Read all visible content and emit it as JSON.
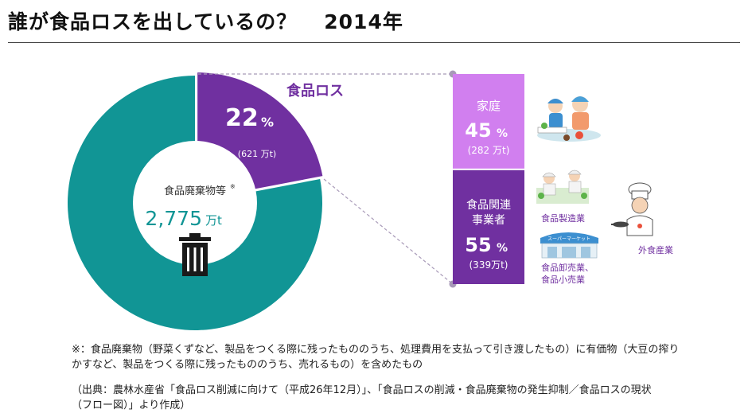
{
  "page": {
    "title": "誰が食品ロスを出しているの？",
    "year": "2014年"
  },
  "chart_data": [
    {
      "type": "pie",
      "title": "",
      "center_label": "食品廃棄物等",
      "center_label_mark": "※",
      "total": "2,775",
      "total_unit": "万t",
      "slices": [
        {
          "name": "食品ロス",
          "percent": 22,
          "percent_unit": "%",
          "amount": "(621 万t)",
          "color": "#7030a0"
        },
        {
          "name": "",
          "percent": 78,
          "color": "#119595"
        }
      ]
    },
    {
      "type": "bar",
      "title": "食品ロス",
      "stacked": true,
      "segments": [
        {
          "name": "家庭",
          "percent": 45,
          "percent_unit": "%",
          "amount": "(282 万t)",
          "color": "#d17fef"
        },
        {
          "name": "食品関連事業者",
          "name_lines": [
            "食品関連",
            "事業者"
          ],
          "percent": 55,
          "percent_unit": "%",
          "amount": "(339万t)",
          "color": "#7030a0"
        }
      ]
    }
  ],
  "business_types": {
    "manufacturing": "食品製造業",
    "wholesale_retail_1": "食品卸売業、",
    "wholesale_retail_2": "食品小売業",
    "restaurant": "外食産業",
    "store_sign": "スーパーマーケット"
  },
  "notes": {
    "footnote_1": "※：食品廃棄物（野菜くずなど、製品をつくる際に残ったもののうち、処理費用を支払って引き渡したもの）に有価物（大豆の搾り",
    "footnote_2": "かすなど、製品をつくる際に残ったもののうち、売れるもの）を含めたもの",
    "source_1": "（出典：農林水産省「食品ロス削減に向けて（平成26年12月）」、「食品ロスの削減・食品廃棄物の発生抑制／食品ロスの現状",
    "source_2": "（フロー図）」より作成）"
  }
}
